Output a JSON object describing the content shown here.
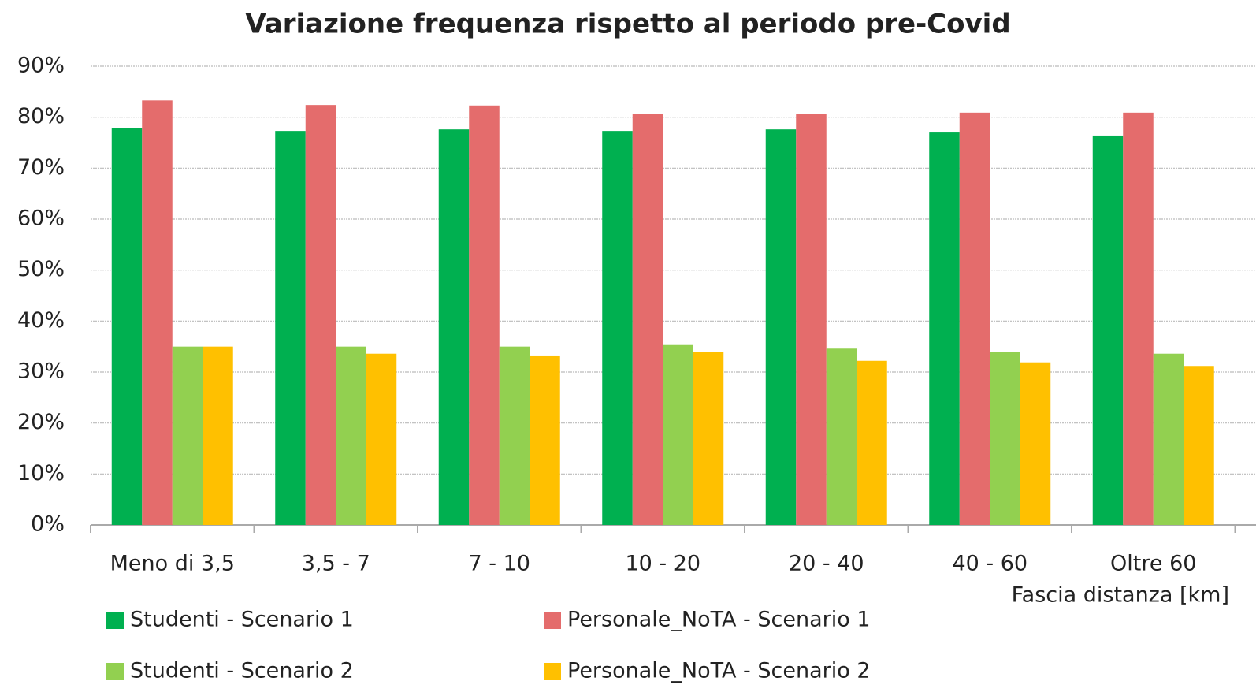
{
  "chart_data": {
    "type": "bar",
    "title": "Variazione frequenza rispetto al periodo pre-Covid",
    "x_label": "Fascia distanza [km]",
    "categories": [
      "Meno di 3,5",
      "3,5 - 7",
      "7 - 10",
      "10 - 20",
      "20 - 40",
      "40 - 60",
      "Oltre 60"
    ],
    "series": [
      {
        "name": "Studenti - Scenario 1",
        "color": "#00b050",
        "values": [
          77.9,
          77.3,
          77.6,
          77.3,
          77.6,
          77.0,
          76.4
        ]
      },
      {
        "name": "Personale_NoTA - Scenario 1",
        "color": "#e46c6c",
        "values": [
          83.3,
          82.4,
          82.3,
          80.6,
          80.6,
          80.9,
          80.9
        ]
      },
      {
        "name": "Studenti - Scenario 2",
        "color": "#92d050",
        "values": [
          35.0,
          35.0,
          35.0,
          35.3,
          34.6,
          34.0,
          33.6
        ]
      },
      {
        "name": "Personale_NoTA - Scenario 2",
        "color": "#ffc000",
        "values": [
          35.0,
          33.6,
          33.1,
          33.9,
          32.2,
          31.9,
          31.2
        ]
      }
    ],
    "ylim": [
      0,
      90
    ],
    "yticks": [
      {
        "value": 0,
        "label": "0%"
      },
      {
        "value": 10,
        "label": "10%"
      },
      {
        "value": 20,
        "label": "20%"
      },
      {
        "value": 30,
        "label": "30%"
      },
      {
        "value": 40,
        "label": "40%"
      },
      {
        "value": 50,
        "label": "50%"
      },
      {
        "value": 60,
        "label": "60%"
      },
      {
        "value": 70,
        "label": "70%"
      },
      {
        "value": 80,
        "label": "80%"
      },
      {
        "value": 90,
        "label": "90%"
      }
    ],
    "grid": true
  }
}
